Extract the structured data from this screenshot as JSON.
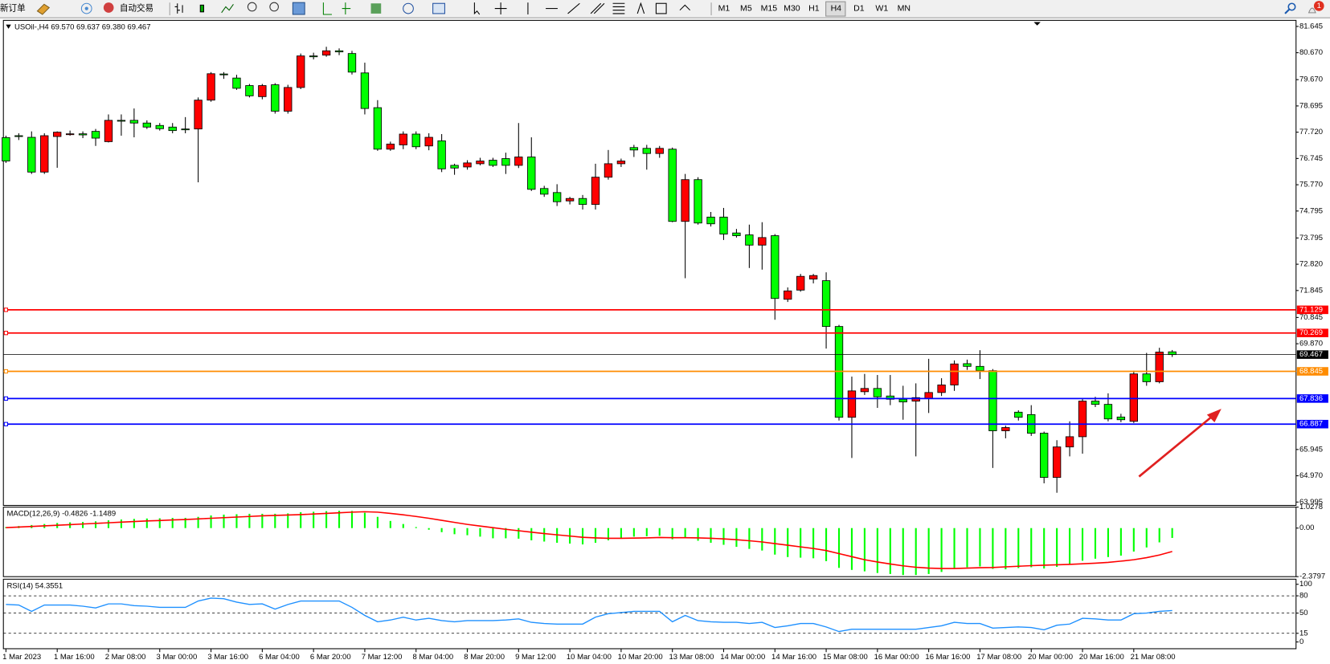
{
  "toolbar": {
    "new_order": "新订单",
    "auto_trading": "自动交易",
    "timeframes": [
      "M1",
      "M5",
      "M15",
      "M30",
      "H1",
      "H4",
      "D1",
      "W1",
      "MN"
    ],
    "notifications": "1"
  },
  "chart_data": [
    {
      "type": "candlestick",
      "title": "USOil-,H4  69.570 69.637 69.380 69.467",
      "categories": [
        "1 Mar 2023",
        null,
        null,
        null,
        "1 Mar 16:00",
        null,
        null,
        null,
        "2 Mar 08:00",
        null,
        null,
        null,
        "3 Mar 00:00",
        null,
        null,
        null,
        "3 Mar 16:00",
        null,
        null,
        null,
        "6 Mar 04:00",
        null,
        null,
        null,
        "6 Mar 20:00",
        null,
        null,
        null,
        "7 Mar 12:00",
        null,
        null,
        null,
        "8 Mar 04:00",
        null,
        null,
        null,
        "8 Mar 20:00",
        null,
        null,
        null,
        "9 Mar 12:00",
        null,
        null,
        null,
        "10 Mar 04:00",
        null,
        null,
        null,
        "10 Mar 20:00",
        null,
        null,
        null,
        "13 Mar 08:00",
        null,
        null,
        null,
        "14 Mar 00:00",
        null,
        null,
        null,
        "14 Mar 16:00",
        null,
        null,
        null,
        "15 Mar 08:00",
        null,
        null,
        null,
        "16 Mar 00:00",
        null,
        null,
        null,
        "16 Mar 16:00",
        null,
        null,
        null,
        "17 Mar 08:00",
        null,
        null,
        null,
        "20 Mar 00:00",
        null,
        null,
        null,
        "20 Mar 16:00",
        null,
        null,
        null,
        "21 Mar 08:00",
        null,
        null,
        null
      ],
      "open": [
        77.52,
        77.59,
        77.53,
        76.24,
        77.56,
        77.65,
        77.66,
        77.75,
        77.37,
        78.16,
        78.16,
        78.06,
        77.97,
        77.91,
        77.84,
        77.84,
        78.91,
        79.88,
        79.73,
        79.45,
        79.04,
        79.48,
        78.5,
        79.38,
        80.55,
        80.58,
        80.74,
        80.64,
        79.92,
        78.63,
        77.09,
        77.25,
        77.65,
        77.21,
        77.4,
        76.49,
        76.43,
        76.55,
        76.68,
        76.74,
        76.49,
        76.8,
        75.63,
        75.48,
        75.17,
        75.26,
        75.04,
        76.05,
        76.55,
        77.15,
        77.12,
        76.93,
        77.09,
        74.41,
        75.96,
        74.57,
        74.57,
        73.98,
        73.91,
        73.53,
        73.88,
        71.52,
        71.86,
        72.27,
        72.21,
        70.51,
        67.14,
        68.09,
        68.21,
        67.93,
        67.81,
        67.74,
        67.84,
        68.06,
        68.34,
        69.13,
        69.03,
        68.87,
        66.64,
        67.33,
        67.24,
        66.55,
        64.91,
        66.04,
        66.42,
        67.74,
        67.62,
        67.15,
        66.99,
        68.75,
        68.46,
        69.57
      ],
      "high": [
        77.59,
        77.68,
        77.75,
        77.68,
        77.75,
        77.78,
        77.75,
        77.84,
        78.38,
        78.38,
        78.6,
        78.16,
        78.06,
        78.06,
        78.28,
        79.01,
        79.95,
        79.95,
        79.85,
        79.51,
        79.51,
        79.54,
        79.48,
        80.64,
        80.67,
        80.89,
        80.83,
        80.74,
        80.3,
        78.91,
        77.37,
        77.75,
        77.75,
        77.68,
        77.65,
        76.55,
        76.68,
        76.77,
        76.77,
        76.96,
        78.06,
        77.53,
        75.73,
        75.79,
        75.32,
        75.39,
        76.55,
        77.06,
        76.74,
        77.25,
        77.25,
        77.21,
        77.15,
        76.17,
        76.05,
        74.76,
        74.91,
        74.13,
        74.29,
        74.38,
        73.94,
        71.96,
        72.46,
        72.46,
        72.52,
        70.57,
        68.65,
        68.75,
        68.71,
        68.71,
        68.31,
        68.4,
        69.31,
        68.59,
        69.25,
        69.28,
        69.63,
        68.93,
        66.83,
        67.4,
        67.59,
        66.61,
        66.29,
        66.99,
        67.84,
        67.9,
        68.03,
        67.27,
        68.87,
        69.53,
        69.72,
        69.637
      ],
      "low": [
        76.58,
        77.43,
        76.17,
        76.17,
        76.4,
        77.59,
        77.5,
        77.21,
        77.34,
        77.59,
        77.53,
        77.84,
        77.78,
        77.68,
        77.68,
        75.86,
        78.85,
        79.7,
        79.29,
        79.01,
        78.94,
        78.41,
        78.41,
        79.32,
        80.42,
        80.52,
        80.58,
        79.86,
        78.38,
        77.03,
        77.03,
        77.09,
        77.09,
        77.05,
        76.24,
        76.14,
        76.33,
        76.49,
        76.43,
        76.17,
        76.39,
        75.54,
        75.32,
        74.98,
        75.04,
        74.85,
        74.85,
        75.96,
        76.43,
        76.8,
        76.33,
        76.77,
        74.38,
        72.3,
        74.29,
        74.22,
        73.72,
        73.81,
        72.68,
        72.62,
        70.76,
        71.42,
        71.8,
        72.11,
        69.69,
        67.02,
        65.63,
        67.97,
        67.49,
        67.59,
        67.05,
        65.69,
        67.3,
        67.93,
        68.12,
        68.9,
        68.56,
        65.26,
        66.36,
        67.02,
        66.45,
        64.69,
        64.34,
        65.69,
        65.79,
        67.52,
        66.99,
        66.96,
        66.93,
        68.31,
        68.4,
        69.38
      ],
      "close": [
        76.65,
        77.56,
        76.24,
        77.59,
        77.72,
        77.66,
        77.62,
        77.5,
        78.16,
        78.13,
        78.06,
        77.91,
        77.85,
        77.78,
        77.81,
        78.91,
        79.89,
        79.85,
        79.35,
        79.07,
        79.45,
        78.5,
        79.38,
        80.55,
        80.52,
        80.74,
        80.7,
        79.95,
        78.6,
        77.09,
        77.28,
        77.65,
        77.18,
        77.53,
        76.36,
        76.39,
        76.58,
        76.65,
        76.49,
        76.49,
        76.8,
        75.6,
        75.42,
        75.14,
        75.26,
        75.04,
        76.05,
        76.55,
        76.65,
        77.06,
        76.93,
        77.12,
        74.41,
        75.96,
        74.35,
        74.32,
        73.94,
        73.88,
        73.53,
        73.81,
        71.55,
        71.83,
        72.37,
        72.4,
        70.51,
        67.14,
        68.12,
        68.21,
        67.9,
        67.81,
        67.71,
        67.87,
        68.06,
        68.34,
        69.12,
        69.03,
        68.87,
        66.64,
        66.76,
        67.14,
        66.55,
        64.91,
        66.04,
        66.42,
        67.74,
        67.62,
        67.08,
        67.05,
        68.75,
        68.46,
        69.56,
        69.467
      ],
      "up_color": "#ff0000",
      "down_color": "#00ff00",
      "ylim": [
        63.87,
        81.87
      ],
      "yticks": [
        {
          "value": 81.645,
          "label": "81.645"
        },
        {
          "value": 80.67,
          "label": "80.670"
        },
        {
          "value": 79.67,
          "label": "79.670"
        },
        {
          "value": 78.695,
          "label": "78.695"
        },
        {
          "value": 77.72,
          "label": "77.720"
        },
        {
          "value": 76.745,
          "label": "76.745"
        },
        {
          "value": 75.77,
          "label": "75.770"
        },
        {
          "value": 74.795,
          "label": "74.795"
        },
        {
          "value": 73.795,
          "label": "73.795"
        },
        {
          "value": 72.82,
          "label": "72.820"
        },
        {
          "value": 71.845,
          "label": "71.845"
        },
        {
          "value": 70.845,
          "label": "70.845"
        },
        {
          "value": 69.87,
          "label": "69.870"
        },
        {
          "value": 65.945,
          "label": "65.945"
        },
        {
          "value": 64.97,
          "label": "64.970"
        },
        {
          "value": 63.995,
          "label": "63.995"
        }
      ],
      "levels": [
        {
          "value": 71.129,
          "color": "#ff0000"
        },
        {
          "value": 70.269,
          "color": "#ff0000"
        },
        {
          "value": 69.467,
          "color": "#000000"
        },
        {
          "value": 68.845,
          "color": "#ff8c00"
        },
        {
          "value": 67.836,
          "color": "#0000ff"
        },
        {
          "value": 66.887,
          "color": "#0000ff"
        }
      ]
    },
    {
      "type": "macd",
      "title": "MACD(12,26,9) -0.4826 -1.1489",
      "series": [
        {
          "type": "bar",
          "color": "#00ff00",
          "values": [
            0.05,
            0.1,
            0.15,
            0.2,
            0.25,
            0.28,
            0.3,
            0.33,
            0.38,
            0.42,
            0.45,
            0.47,
            0.48,
            0.5,
            0.5,
            0.55,
            0.62,
            0.66,
            0.68,
            0.7,
            0.7,
            0.7,
            0.72,
            0.78,
            0.8,
            0.83,
            0.85,
            0.84,
            0.75,
            0.55,
            0.35,
            0.2,
            0.05,
            -0.08,
            -0.2,
            -0.3,
            -0.35,
            -0.42,
            -0.5,
            -0.5,
            -0.52,
            -0.6,
            -0.66,
            -0.72,
            -0.76,
            -0.8,
            -0.72,
            -0.6,
            -0.5,
            -0.42,
            -0.4,
            -0.38,
            -0.55,
            -0.5,
            -0.62,
            -0.72,
            -0.82,
            -0.92,
            -1.02,
            -1.1,
            -1.3,
            -1.42,
            -1.45,
            -1.48,
            -1.62,
            -1.95,
            -2.05,
            -2.12,
            -2.2,
            -2.25,
            -2.3,
            -2.3,
            -2.25,
            -2.15,
            -2.0,
            -1.92,
            -1.88,
            -2.0,
            -2.02,
            -1.96,
            -1.92,
            -1.98,
            -1.9,
            -1.78,
            -1.6,
            -1.5,
            -1.42,
            -1.35,
            -1.15,
            -0.95,
            -0.7,
            -0.4826
          ]
        },
        {
          "type": "line",
          "color": "#ff0000",
          "values": [
            0.02,
            0.05,
            0.08,
            0.11,
            0.14,
            0.17,
            0.2,
            0.23,
            0.26,
            0.29,
            0.32,
            0.35,
            0.37,
            0.4,
            0.42,
            0.45,
            0.48,
            0.51,
            0.54,
            0.57,
            0.6,
            0.62,
            0.64,
            0.66,
            0.69,
            0.72,
            0.75,
            0.78,
            0.8,
            0.78,
            0.72,
            0.65,
            0.57,
            0.48,
            0.38,
            0.28,
            0.18,
            0.1,
            0.02,
            -0.06,
            -0.13,
            -0.2,
            -0.27,
            -0.33,
            -0.39,
            -0.45,
            -0.48,
            -0.5,
            -0.5,
            -0.49,
            -0.48,
            -0.46,
            -0.47,
            -0.47,
            -0.48,
            -0.5,
            -0.53,
            -0.57,
            -0.62,
            -0.68,
            -0.76,
            -0.84,
            -0.92,
            -1.0,
            -1.1,
            -1.25,
            -1.4,
            -1.55,
            -1.66,
            -1.76,
            -1.85,
            -1.92,
            -1.96,
            -1.98,
            -1.98,
            -1.96,
            -1.94,
            -1.93,
            -1.9,
            -1.87,
            -1.84,
            -1.82,
            -1.8,
            -1.78,
            -1.75,
            -1.72,
            -1.68,
            -1.62,
            -1.55,
            -1.45,
            -1.32,
            -1.1489
          ]
        }
      ],
      "ylim": [
        -2.3797,
        1.0278
      ],
      "yticks": [
        1.0278,
        {
          "value": 0,
          "label": "0.00"
        },
        -2.3797
      ]
    },
    {
      "type": "line",
      "title": "RSI(14) 54.3551",
      "color": "#1e90ff",
      "values": [
        65,
        64,
        53,
        64,
        64,
        64,
        62,
        59,
        66,
        66,
        63,
        62,
        60,
        60,
        60,
        71,
        76,
        75,
        69,
        65,
        66,
        57,
        65,
        71,
        71,
        71,
        71,
        60,
        46,
        35,
        38,
        43,
        38,
        41,
        37,
        35,
        37,
        37,
        37,
        38,
        40,
        34,
        32,
        31,
        31,
        31,
        43,
        49,
        51,
        53,
        53,
        53,
        35,
        46,
        37,
        35,
        34,
        34,
        32,
        34,
        25,
        28,
        32,
        32,
        26,
        18,
        22,
        22,
        22,
        22,
        22,
        22,
        25,
        28,
        34,
        32,
        32,
        24,
        25,
        26,
        25,
        21,
        29,
        31,
        41,
        40,
        38,
        38,
        49,
        50,
        53,
        54.3551
      ],
      "ylim": [
        0,
        100
      ],
      "yticks": [
        100,
        80,
        50,
        15,
        0
      ],
      "levels": [
        80,
        50,
        15
      ]
    }
  ]
}
